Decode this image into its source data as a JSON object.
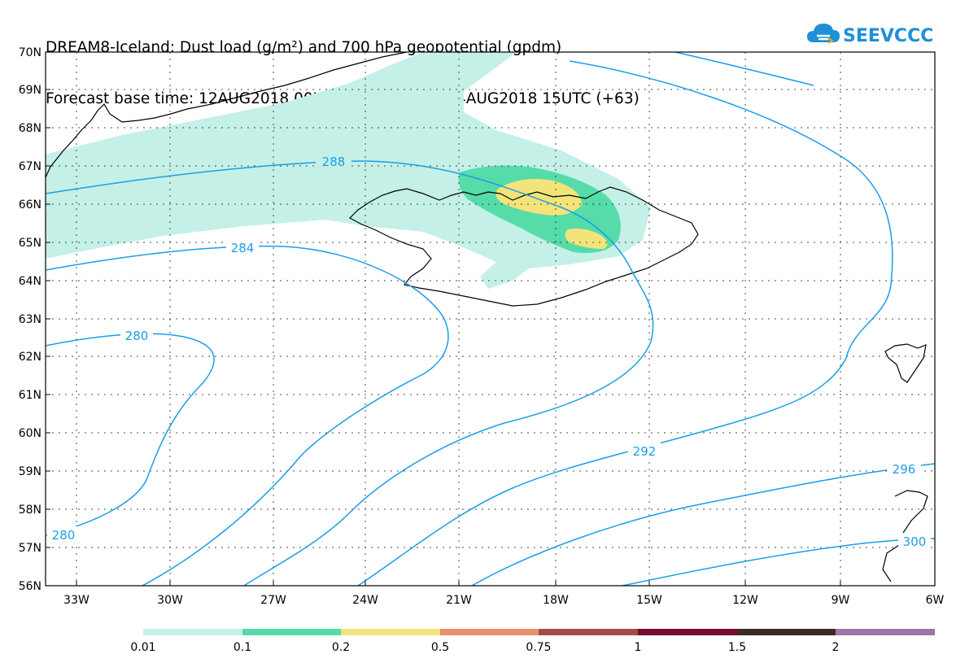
{
  "title": {
    "line1": "DREAM8-Iceland: Dust load (g/m²) and 700 hPa geopotential (gpdm)",
    "line2": "Forecast base time: 12AUG2018 00UTC    Valid time: 14AUG2018 15UTC (+63)"
  },
  "logo": {
    "text": "SEEVCCC",
    "icon": "cloud-icon",
    "color": "#1f8fd8"
  },
  "axes": {
    "lat_labels": [
      "70N",
      "69N",
      "68N",
      "67N",
      "66N",
      "65N",
      "64N",
      "63N",
      "62N",
      "61N",
      "60N",
      "59N",
      "58N",
      "57N",
      "56N"
    ],
    "lon_labels": [
      "33W",
      "30W",
      "27W",
      "24W",
      "21W",
      "18W",
      "15W",
      "12W",
      "9W",
      "6W"
    ]
  },
  "contours": {
    "color": "#1a9ee8",
    "labels": [
      "288",
      "284",
      "280",
      "280",
      "292",
      "296",
      "300"
    ]
  },
  "dust_colors": [
    "#c4f0e8",
    "#55dca8",
    "#f2e47a"
  ],
  "legend": {
    "labels": [
      "0.01",
      "0.1",
      "0.2",
      "0.5",
      "0.75",
      "1",
      "1.5",
      "2"
    ],
    "colors": [
      "#c4f0e8",
      "#55dca8",
      "#f2e47a",
      "#e8906a",
      "#a24c4a",
      "#7a0d30",
      "#3c2a22",
      "#9c76a8"
    ]
  }
}
